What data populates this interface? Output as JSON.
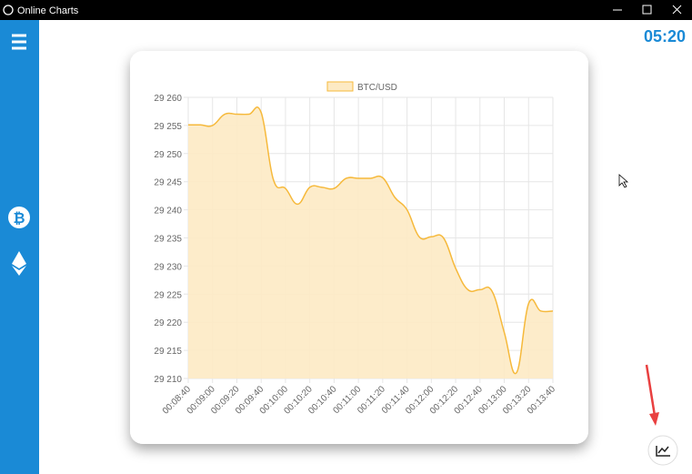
{
  "window": {
    "title": "Online Charts"
  },
  "clock": "05:20",
  "chart_data": {
    "type": "line",
    "categories": [
      "00:08:40",
      null,
      "00:09:00",
      null,
      "00:09:20",
      null,
      "00:09:40",
      null,
      "00:10:00",
      null,
      "00:10:20",
      null,
      "00:10:40",
      null,
      "00:11:00",
      null,
      "00:11:20",
      null,
      "00:11:40",
      null,
      "00:12:00",
      null,
      "00:12:20",
      null,
      "00:12:40",
      null,
      "00:13:00",
      null,
      "00:13:20",
      null,
      "00:13:40"
    ],
    "series": [
      {
        "name": "BTC/USD",
        "color": "#f6b93b",
        "fill": "#fdeac4",
        "values": [
          29255.1,
          29255.1,
          29255,
          29257,
          29257,
          29257,
          29257.3,
          29245.4,
          29243.8,
          29241,
          29244,
          29244,
          29243.8,
          29245.6,
          29245.6,
          29245.6,
          29245.7,
          29242.2,
          29240,
          29235.2,
          29235.2,
          29235,
          29229.6,
          29225.8,
          29225.8,
          29225.5,
          29218.2,
          29211,
          29223.3,
          29222,
          29222
        ]
      }
    ],
    "ylim": [
      29210,
      29260
    ],
    "yticks": [
      {
        "value": 29210,
        "label": "29 210"
      },
      {
        "value": 29215,
        "label": "29 215"
      },
      {
        "value": 29220,
        "label": "29 220"
      },
      {
        "value": 29225,
        "label": "29 225"
      },
      {
        "value": 29230,
        "label": "29 230"
      },
      {
        "value": 29235,
        "label": "29 235"
      },
      {
        "value": 29240,
        "label": "29 240"
      },
      {
        "value": 29245,
        "label": "29 245"
      },
      {
        "value": 29250,
        "label": "29 250"
      },
      {
        "value": 29255,
        "label": "29 255"
      },
      {
        "value": 29260,
        "label": "29 260"
      }
    ],
    "grid": true,
    "legend": "top"
  }
}
